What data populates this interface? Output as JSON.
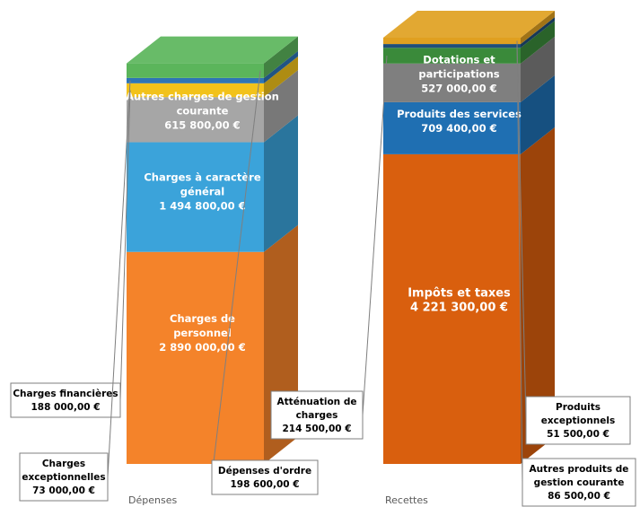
{
  "chart_data": {
    "type": "bar",
    "stacked": true,
    "style": "3d-column",
    "categories": [
      "Dépenses",
      "Recettes"
    ],
    "grid": false,
    "legend": "none",
    "series": [
      {
        "category": "Dépenses",
        "segments": [
          {
            "name": "Charges de personnel",
            "value": 2890000.0,
            "value_label": "2 890 000,00 €",
            "color": "#F4832A",
            "label_style": "inside"
          },
          {
            "name": "Charges à caractère général",
            "value": 1494800.0,
            "value_label": "1 494 800,00 €",
            "color": "#3BA3DA",
            "label_style": "inside"
          },
          {
            "name": "Autres charges de gestion courante",
            "value": 615800.0,
            "value_label": "615 800,00 €",
            "color": "#A6A6A6",
            "label_style": "inside-dark"
          },
          {
            "name": "Charges financières",
            "value": 188000.0,
            "value_label": "188 000,00 €",
            "color": "#F2C21B",
            "label_style": "callout"
          },
          {
            "name": "Charges exceptionnelles",
            "value": 73000.0,
            "value_label": "73 000,00 €",
            "color": "#2E75B6",
            "label_style": "callout"
          },
          {
            "name": "Dépenses d'ordre",
            "value": 198600.0,
            "value_label": "198 600,00 €",
            "color": "#5BB55B",
            "label_style": "callout"
          }
        ]
      },
      {
        "category": "Recettes",
        "segments": [
          {
            "name": "Impôts et taxes",
            "value": 4221300.0,
            "value_label": "4 221 300,00 €",
            "color": "#D95F0E",
            "label_style": "inside"
          },
          {
            "name": "Produits des services",
            "value": 709400.0,
            "value_label": "709 400,00 €",
            "color": "#1F6FB2",
            "label_style": "inside"
          },
          {
            "name": "Dotations et participations",
            "value": 527000.0,
            "value_label": "527 000,00 €",
            "color": "#7F7F7F",
            "label_style": "inside"
          },
          {
            "name": "Atténuation de charges",
            "value": 214500.0,
            "value_label": "214 500,00 €",
            "color": "#3A8A3A",
            "label_style": "callout"
          },
          {
            "name": "Produits exceptionnels",
            "value": 51500.0,
            "value_label": "51 500,00 €",
            "color": "#1F4E79",
            "label_style": "callout"
          },
          {
            "name": "Autres produits de gestion courante",
            "value": 86500.0,
            "value_label": "86 500,00 €",
            "color": "#E0A020",
            "label_style": "callout"
          }
        ]
      }
    ],
    "inside_labels": {
      "Charges de personnel": [
        "Charges de",
        "personnel"
      ],
      "Charges à caractère général": [
        "Charges à caractère",
        "général"
      ],
      "Autres charges de gestion courante": [
        "Autres charges de gestion",
        "courante"
      ],
      "Impôts et taxes": [
        "Impôts et taxes"
      ],
      "Produits des services": [
        "Produits des services"
      ],
      "Dotations et participations": [
        "Dotations et",
        "participations"
      ]
    },
    "callouts": {
      "Charges financières": [
        "Charges financières"
      ],
      "Charges exceptionnelles": [
        "Charges",
        "exceptionnelles"
      ],
      "Dépenses d'ordre": [
        "Dépenses d'ordre"
      ],
      "Atténuation de charges": [
        "Atténuation de",
        "charges"
      ],
      "Produits exceptionnels": [
        "Produits",
        "exceptionnels"
      ],
      "Autres produits de gestion courante": [
        "Autres produits de",
        "gestion courante"
      ]
    }
  }
}
